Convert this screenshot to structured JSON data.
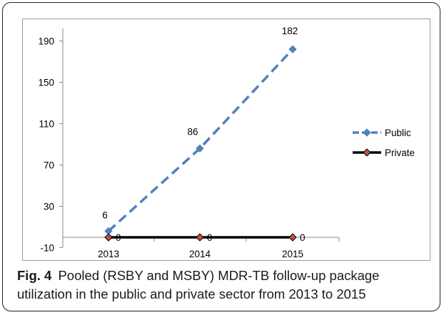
{
  "figure": {
    "label": "Fig. 4",
    "caption": "Pooled (RSBY and MSBY) MDR-TB follow-up package utilization in the public and private sector from 2013 to 2015"
  },
  "chart_data": {
    "type": "line",
    "title": "",
    "xlabel": "",
    "ylabel": "",
    "categories": [
      "2013",
      "2014",
      "2015"
    ],
    "ylim": [
      -10,
      210
    ],
    "yticks": [
      -10,
      30,
      70,
      110,
      150,
      190
    ],
    "grid": false,
    "legend_position": "right",
    "series": [
      {
        "name": "Public",
        "values": [
          6,
          86,
          182
        ],
        "labels": [
          "6",
          "86",
          "182"
        ],
        "color": "#4F81BD",
        "line_style": "dashed",
        "marker": "diamond"
      },
      {
        "name": "Private",
        "values": [
          0,
          0,
          0
        ],
        "labels": [
          "0",
          "0",
          "0"
        ],
        "color": "#000000",
        "marker_fill": "#C0504D",
        "line_style": "solid",
        "marker": "diamond"
      }
    ]
  }
}
